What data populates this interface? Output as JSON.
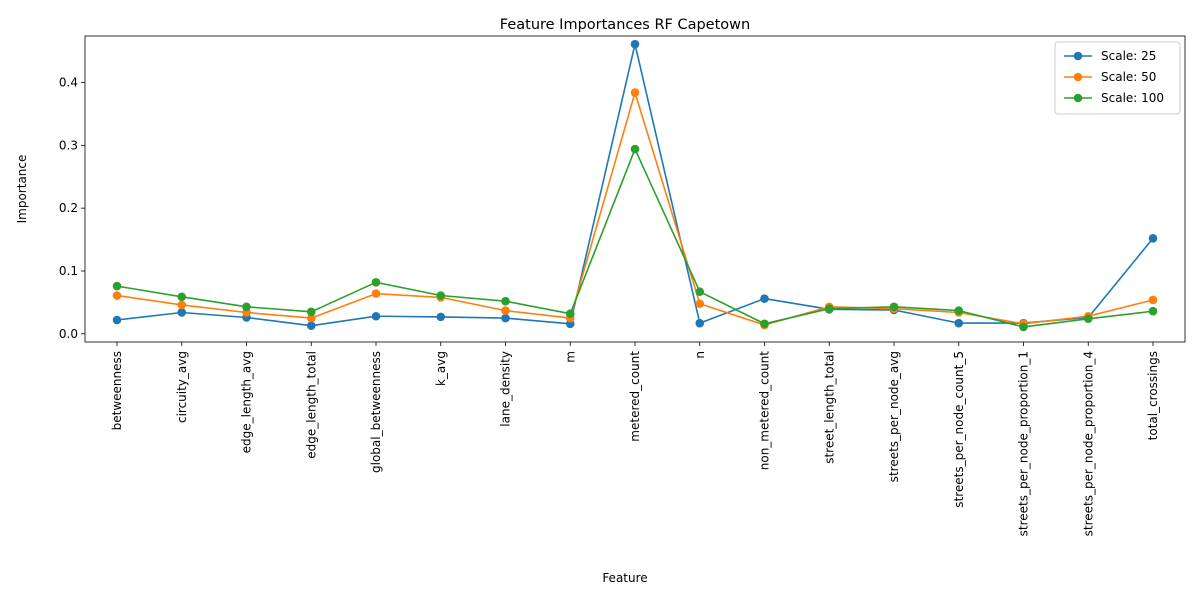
{
  "chart_data": {
    "type": "line",
    "title": "Feature Importances RF Capetown",
    "xlabel": "Feature",
    "ylabel": "Importance",
    "categories": [
      "betweenness",
      "circuity_avg",
      "edge_length_avg",
      "edge_length_total",
      "global_betweenness",
      "k_avg",
      "lane_density",
      "m",
      "metered_count",
      "n",
      "non_metered_count",
      "street_length_total",
      "streets_per_node_avg",
      "streets_per_node_count_5",
      "streets_per_node_proportion_1",
      "streets_per_node_proportion_4",
      "total_crossings"
    ],
    "ylim": [
      -0.013,
      0.474
    ],
    "yticks": [
      0.0,
      0.1,
      0.2,
      0.3,
      0.4
    ],
    "ytick_labels": [
      "0.0",
      "0.1",
      "0.2",
      "0.3",
      "0.4"
    ],
    "grid": false,
    "legend_position": "top-right",
    "series": [
      {
        "name": "Scale: 25",
        "color": "#1f77b4",
        "values": [
          0.022,
          0.034,
          0.026,
          0.013,
          0.028,
          0.027,
          0.025,
          0.016,
          0.461,
          0.017,
          0.056,
          0.039,
          0.038,
          0.017,
          0.017,
          0.026,
          0.152
        ]
      },
      {
        "name": "Scale: 50",
        "color": "#ff7f0e",
        "values": [
          0.061,
          0.046,
          0.034,
          0.025,
          0.064,
          0.058,
          0.037,
          0.025,
          0.384,
          0.048,
          0.014,
          0.043,
          0.04,
          0.034,
          0.016,
          0.028,
          0.054
        ]
      },
      {
        "name": "Scale: 100",
        "color": "#2ca02c",
        "values": [
          0.076,
          0.059,
          0.043,
          0.035,
          0.082,
          0.061,
          0.052,
          0.032,
          0.294,
          0.067,
          0.016,
          0.04,
          0.043,
          0.037,
          0.011,
          0.024,
          0.036
        ]
      }
    ]
  }
}
